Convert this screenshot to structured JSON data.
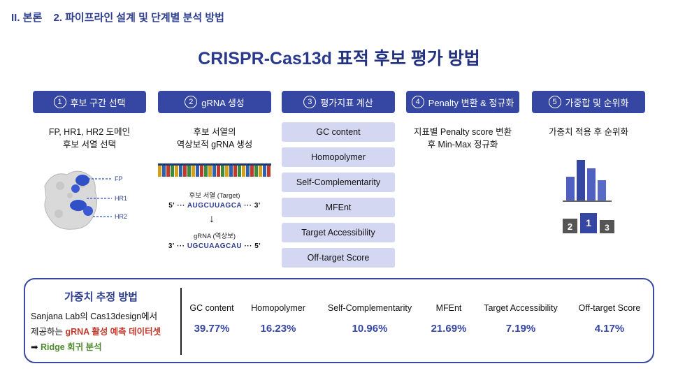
{
  "header": {
    "section": "II. 본론",
    "subsection": "2. 파이프라인 설계 및 단계별 분석 방법"
  },
  "title": {
    "highlight": "CRISPR-Cas13d",
    "rest": " 표적 후보 평가 방법"
  },
  "steps": [
    {
      "num": "1",
      "label": "후보 구간 선택",
      "desc": [
        "FP, HR1, HR2 도메인",
        "후보 서열 선택"
      ]
    },
    {
      "num": "2",
      "label": "gRNA 생성",
      "desc": [
        "후보 서열의",
        "역상보적 gRNA 생성"
      ]
    },
    {
      "num": "3",
      "label": "평가지표 계산"
    },
    {
      "num": "4",
      "label": "Penalty 변환 & 정규화",
      "desc": [
        "지표별 Penalty score 변환",
        "후 Min-Max 정규화"
      ]
    },
    {
      "num": "5",
      "label": "가중합 및 순위화",
      "desc": [
        "가중치 적용 후 순위화"
      ]
    }
  ],
  "metrics": [
    "GC content",
    "Homopolymer",
    "Self-Complementarity",
    "MFEnt",
    "Target Accessibility",
    "Off-target Score"
  ],
  "protein_labels": [
    "FP",
    "HR1",
    "HR2"
  ],
  "target": {
    "label": "후보 서열 (Target)",
    "prefix": "5' ··· ",
    "seq": "AUGCUUAGCA",
    "suffix": " ··· 3'"
  },
  "grna": {
    "label": "gRNA (역상보)",
    "prefix": "3' ··· ",
    "seq": "UGCUAAGCAU",
    "suffix": " ··· 5'"
  },
  "arrow": "↓",
  "podium": [
    "2",
    "1",
    "3"
  ],
  "weights_panel": {
    "title": "가중치 추정 방법",
    "line1": "Sanjana Lab의 Cas13design에서",
    "line2_prefix": "제공하는 ",
    "line2_highlight": "gRNA 활성 예측 데이터셋",
    "line3_arrow": "➡",
    "line3_text": " Ridge 회귀 분석",
    "weights": [
      {
        "name": "GC content",
        "value": "39.77%"
      },
      {
        "name": "Homopolymer",
        "value": "16.23%"
      },
      {
        "name": "Self-Complementarity",
        "value": "10.96%"
      },
      {
        "name": "MFEnt",
        "value": "21.69%"
      },
      {
        "name": "Target Accessibility",
        "value": "7.19%"
      },
      {
        "name": "Off-target Score",
        "value": "4.17%"
      }
    ]
  },
  "colors": {
    "step_bg": "#3646a3",
    "metric_bg": "#d4d7f1",
    "title": "#23327f",
    "highlight_red": "#c0392b",
    "highlight_green": "#4d8a2e"
  }
}
